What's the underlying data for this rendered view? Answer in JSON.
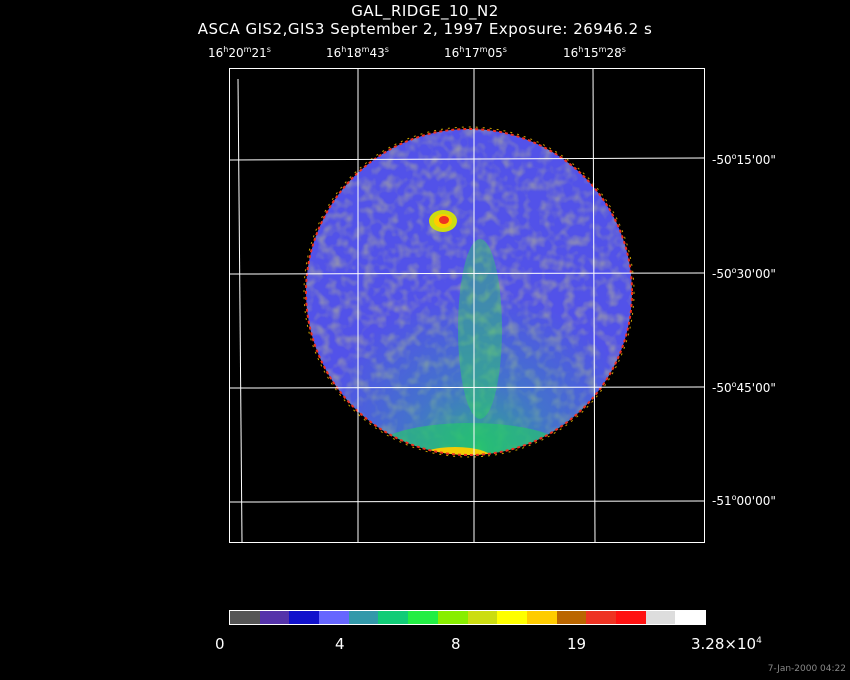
{
  "title": "GAL_RIDGE_10_N2",
  "subtitle": "ASCA GIS2,GIS3 September 2, 1997 Exposure: 26946.2 s",
  "ra_labels": [
    {
      "h": "16",
      "m": "20",
      "s": "21"
    },
    {
      "h": "16",
      "m": "18",
      "s": "43"
    },
    {
      "h": "16",
      "m": "17",
      "s": "05"
    },
    {
      "h": "16",
      "m": "15",
      "s": "28"
    }
  ],
  "dec_labels": [
    {
      "d": "-50",
      "m": "15",
      "s": "00"
    },
    {
      "d": "-50",
      "m": "30",
      "s": "00"
    },
    {
      "d": "-50",
      "m": "45",
      "s": "00"
    },
    {
      "d": "-51",
      "m": "00",
      "s": "00"
    }
  ],
  "colorbar": {
    "colors": [
      "#555555",
      "#5533aa",
      "#1111cc",
      "#6666ff",
      "#3399aa",
      "#11cc77",
      "#22ee44",
      "#88ee00",
      "#ccdd11",
      "#ffff00",
      "#ffcc00",
      "#bb6600",
      "#ee3322",
      "#ff1111",
      "#dddddd",
      "#ffffff"
    ],
    "tick_labels": [
      "0",
      "4",
      "8",
      "19"
    ],
    "max_label_base": "3.28×10",
    "max_label_exp": "4"
  },
  "timestamp": "7-Jan-2000 04:22"
}
